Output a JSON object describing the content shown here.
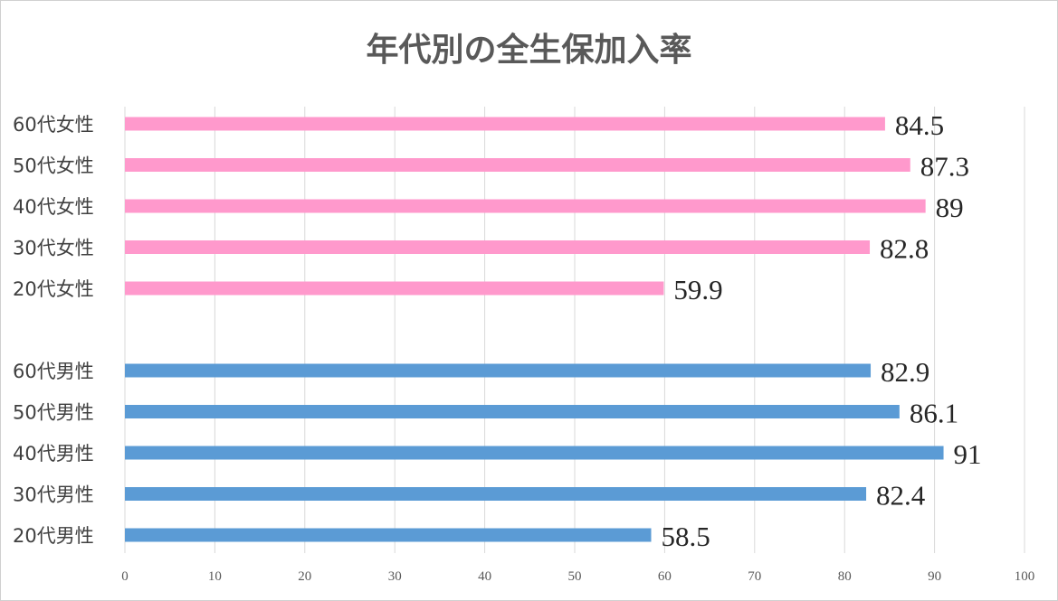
{
  "chart_data": {
    "type": "bar",
    "orientation": "horizontal",
    "title": "年代別の全生保加入率",
    "xlim": [
      0,
      100
    ],
    "xticks": [
      0,
      10,
      20,
      30,
      40,
      50,
      60,
      70,
      80,
      90,
      100
    ],
    "grid": true,
    "legend": "none",
    "groups": [
      {
        "color": "#ff99cc",
        "categories": [
          "60代女性",
          "50代女性",
          "40代女性",
          "30代女性",
          "20代女性"
        ],
        "values": [
          84.5,
          87.3,
          89,
          82.8,
          59.9
        ],
        "labels": [
          "84.5",
          "87.3",
          "89",
          "82.8",
          "59.9"
        ]
      },
      {
        "color": "#5b9bd5",
        "categories": [
          "60代男性",
          "50代男性",
          "40代男性",
          "30代男性",
          "20代男性"
        ],
        "values": [
          82.9,
          86.1,
          91,
          82.4,
          58.5
        ],
        "labels": [
          "82.9",
          "86.1",
          "91",
          "82.4",
          "58.5"
        ]
      }
    ]
  }
}
